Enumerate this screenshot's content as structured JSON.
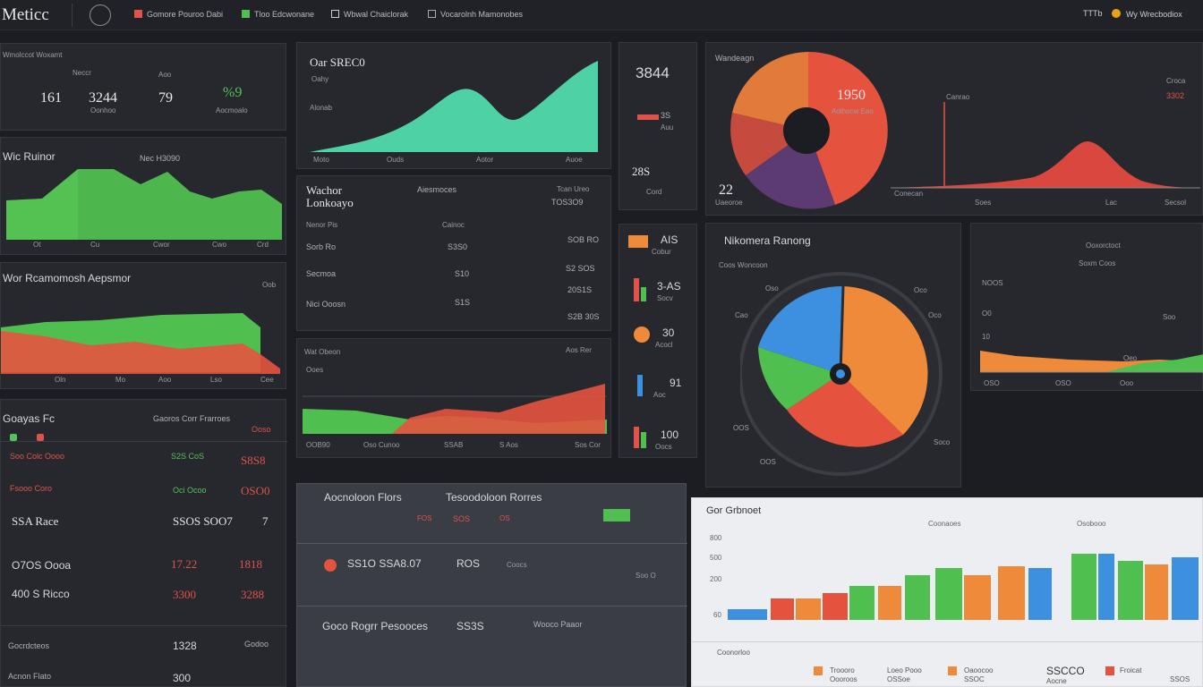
{
  "app": {
    "title": "Meticc"
  },
  "nav": [
    {
      "label": "Gomore Pouroo Dabi",
      "icon": "bar-chart-icon"
    },
    {
      "label": "Tloo Edcwonane",
      "icon": "chart-icon"
    },
    {
      "label": "Wbwal Chaiclorak",
      "icon": "pen-icon"
    },
    {
      "label": "Vocarolnh Mamonobes",
      "icon": "grid-icon"
    }
  ],
  "header_right": {
    "user_label": "Wy Wrecbodiox",
    "code": "TTTb"
  },
  "panels": {
    "kpi": {
      "title": "Wmolccot Woxamt",
      "values": [
        "161",
        "3244",
        "79",
        "%9"
      ],
      "subs": [
        "Neccr",
        "Oonhoo",
        "Aoo",
        "Aocmoalo"
      ]
    },
    "green_area": {
      "title": "Wic Ruinor",
      "value": "Nec H3090",
      "x_labels": [
        "Ot",
        "Cu",
        "Cwor",
        "Cwo",
        "Crd"
      ]
    },
    "red_green": {
      "title": "Wor Rcamomosh Aepsmor",
      "tag": "Oob",
      "x_labels": [
        "Oln",
        "Mo",
        "Aoo",
        "Lso",
        "Cee"
      ]
    },
    "teal": {
      "title": "Oar SREC0",
      "sub": "Oahy",
      "corner": "Alonab",
      "x_labels": [
        "Moto",
        "Ouds",
        "Aotor",
        "Auoe"
      ]
    },
    "small_kpi": {
      "top_value": "3844",
      "rows": [
        {
          "label": "3S",
          "sub": "Auu"
        },
        {
          "label": "28S",
          "sub": "Cord"
        }
      ]
    },
    "top_pie": {
      "title": "Wandeagn",
      "value": "1950",
      "sub": "Aolhocw Eao",
      "bottom_value": "22",
      "bottom_sub": "Uaeoroe"
    },
    "top_right": {
      "title": "3302",
      "badge": "Croca",
      "axis_labels": [
        "Canrao",
        "Conecan",
        "Soes",
        "Lac",
        "Secsol"
      ]
    },
    "table_mid": {
      "title": "Wachor",
      "sub": "Lonkoayo",
      "col_left": "Aiesmoces",
      "col_right": "Tcan Ureo",
      "col_right_value": "TOS3O9",
      "rows": [
        {
          "name": "Nenor Pis",
          "mid": "Cainoc",
          "right": ""
        },
        {
          "name": "Sorb Ro",
          "mid": "S3S0",
          "right": "SOB RO"
        },
        {
          "name": "Secmoa",
          "mid": "S10",
          "right": "S2 SOS"
        },
        {
          "name": "Nici Ooosn",
          "mid": "S1S",
          "right": "20S1S"
        },
        {
          "name": "",
          "mid": "",
          "right": "S2B 30S"
        }
      ]
    },
    "mid_chart": {
      "title": "Wat Obeon",
      "sub": "Ooes",
      "corner": "Aos Rer",
      "x_labels": [
        "OOB90",
        "Oso Cunoo",
        "SSAB",
        "S Aos",
        "Sos Cor"
      ]
    },
    "side_icons": {
      "values": [
        "AIS",
        "3-AS",
        "30",
        "91",
        "100"
      ],
      "subs": [
        "Cobur",
        "Socv",
        "Acocl",
        "Aoc",
        "Oocs"
      ]
    },
    "wheel": {
      "title": "Nikomera Ranong",
      "sub": "Coos Woncoon",
      "ticks": [
        "Oso",
        "Oco",
        "Cao",
        "Oco",
        "OOS",
        "Soco",
        "OOS"
      ]
    },
    "mid_right": {
      "title": "Ooxorctoct",
      "sub": "Soxm Coos",
      "axis_labels": [
        "NOOS",
        "O0",
        "10",
        "Oeo",
        "Soo"
      ],
      "x_labels": [
        "OSO",
        "OSO",
        "Ooo"
      ]
    },
    "goaps": {
      "title": "Goayas Fc",
      "header_center": "Gaoros Corr Frarroes",
      "header_right": "Ooso",
      "rows": [
        {
          "name": "Soo Colc Oooo",
          "mid": "S2S CoS",
          "right": "S8S8"
        },
        {
          "name": "Fsooo Coro",
          "mid": "Oci Ocoo",
          "right": "OSO0"
        },
        {
          "name": "SSA Race",
          "mid": "SSOS SOO7",
          "right": "7"
        },
        {
          "name": "O7OS Oooa",
          "mid": "17.22",
          "right": "1818"
        },
        {
          "name": "400 S Ricco",
          "mid": "3300",
          "right": "3288"
        },
        {
          "name": "Gocrdcteos",
          "mid": "1328",
          "right": "Godoo"
        },
        {
          "name": "Acnon Flato",
          "mid": "300",
          "right": ""
        }
      ]
    },
    "adoption": {
      "title": "Aocnoloon Flors",
      "col2": "Tesoodoloon Rorres",
      "rows": [
        {
          "a": "SS1O SSA8.07",
          "b": "ROS",
          "c": "Coocs",
          "d": "Soo O"
        },
        {
          "a": "Goco Rogrr Pesooces",
          "b": "SS3S",
          "c": "Wooco Paaor",
          "d": ""
        }
      ],
      "badges": [
        "FOS",
        "SOS",
        "OS"
      ]
    },
    "bar_chart": {
      "title": "Gor Grbnoet",
      "legend": [
        "Coonaoes",
        "Osobooo"
      ],
      "y_labels": [
        "800",
        "500",
        "200",
        "60"
      ],
      "footer_title": "Coonorloo",
      "footer_items": [
        {
          "label": "Troooro",
          "value": "Oooroos"
        },
        {
          "label": "Loeo Pooo",
          "value": "OSSoe"
        },
        {
          "label": "Oaoocoo",
          "value": "SSOC"
        },
        {
          "label": "Aocne",
          "value": "SSCCO"
        },
        {
          "label": "Froicat",
          "value": "SSOS"
        }
      ]
    }
  },
  "colors": {
    "green": "#4fbf4f",
    "teal": "#4fd1a6",
    "red": "#e5533f",
    "orange": "#ee8a3a",
    "blue": "#3d8fe0",
    "purple": "#5b3b72",
    "bg": "#1b1d22"
  }
}
